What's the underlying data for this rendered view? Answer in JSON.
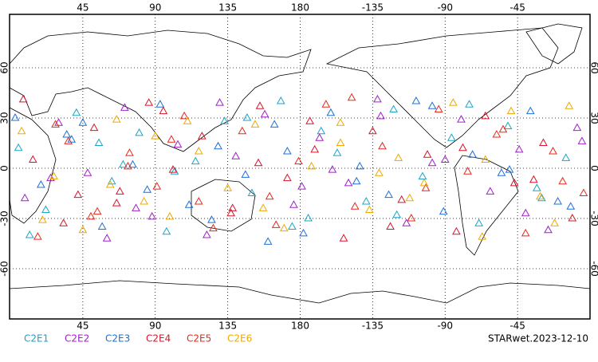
{
  "chart_data": {
    "type": "scatter",
    "footer": "STARwet.2023-12-10",
    "xlim": [
      0,
      360
    ],
    "ylim": [
      -90,
      90
    ],
    "xticks": [
      45,
      90,
      135,
      180,
      {
        "value": 225,
        "label": "-135"
      },
      {
        "value": 270,
        "label": "-90"
      },
      {
        "value": 315,
        "label": "-45"
      }
    ],
    "yticks": [
      60,
      30,
      0,
      -30,
      -60
    ],
    "grid": true,
    "series": [
      {
        "name": "C2E1",
        "color": "#1aa6c8",
        "x": [
          5,
          22,
          41,
          63,
          80,
          97,
          115,
          133,
          150,
          168,
          185,
          203,
          221,
          238,
          256,
          274,
          291,
          309,
          327,
          345,
          12,
          55,
          102,
          147,
          193,
          240,
          285,
          330,
          70,
          175
        ],
        "values": [
          12,
          -25,
          33,
          -8,
          21,
          -38,
          4,
          28,
          -15,
          40,
          -30,
          9,
          -20,
          35,
          -5,
          18,
          -33,
          25,
          -12,
          6,
          -40,
          15,
          -2,
          30,
          22,
          -28,
          38,
          -18,
          2,
          -35
        ]
      },
      {
        "name": "C2E2",
        "color": "#a020c8",
        "x": [
          9,
          30,
          48,
          71,
          88,
          104,
          122,
          140,
          158,
          176,
          192,
          210,
          228,
          246,
          262,
          280,
          298,
          316,
          334,
          352,
          25,
          78,
          130,
          181,
          230,
          270,
          320,
          355,
          60,
          200
        ],
        "values": [
          -18,
          27,
          -3,
          36,
          -29,
          14,
          -40,
          7,
          32,
          -22,
          18,
          -9,
          41,
          -33,
          3,
          29,
          -14,
          11,
          -37,
          24,
          -6,
          -24,
          39,
          -11,
          31,
          5,
          -27,
          16,
          -42,
          -1
        ]
      },
      {
        "name": "C2E3",
        "color": "#1e6fd9",
        "x": [
          3,
          19,
          38,
          57,
          76,
          93,
          111,
          129,
          146,
          164,
          182,
          199,
          217,
          235,
          252,
          269,
          287,
          305,
          323,
          340,
          35,
          85,
          125,
          172,
          215,
          262,
          310,
          348,
          45,
          160
        ],
        "values": [
          30,
          -10,
          17,
          -35,
          2,
          38,
          -22,
          13,
          -4,
          26,
          -39,
          33,
          1,
          -16,
          40,
          -26,
          8,
          -3,
          34,
          -20,
          20,
          -13,
          -31,
          10,
          -8,
          37,
          -1,
          -23,
          27,
          -44
        ]
      },
      {
        "name": "C2E4",
        "color": "#d8142c",
        "x": [
          14,
          33,
          52,
          68,
          86,
          101,
          119,
          137,
          155,
          172,
          189,
          207,
          225,
          243,
          259,
          277,
          295,
          313,
          331,
          349,
          42,
          95,
          138,
          186,
          236,
          281,
          325,
          8,
          66,
          154
        ],
        "values": [
          5,
          -33,
          24,
          -14,
          39,
          -1,
          19,
          -27,
          37,
          -6,
          11,
          -42,
          22,
          -19,
          8,
          -38,
          31,
          -9,
          15,
          -30,
          -16,
          34,
          -24,
          28,
          -35,
          12,
          -7,
          41,
          -21,
          3
        ]
      },
      {
        "name": "C2E5",
        "color": "#e8281a",
        "x": [
          17,
          36,
          54,
          74,
          91,
          108,
          126,
          144,
          161,
          179,
          196,
          214,
          231,
          249,
          266,
          284,
          302,
          320,
          337,
          356,
          28,
          73,
          117,
          165,
          212,
          258,
          306,
          343,
          50,
          100
        ],
        "values": [
          -41,
          16,
          -26,
          9,
          -11,
          31,
          -36,
          22,
          -17,
          4,
          38,
          -23,
          13,
          -30,
          35,
          -2,
          20,
          -39,
          10,
          -15,
          26,
          1,
          -20,
          -34,
          42,
          -12,
          23,
          -8,
          -29,
          17
        ]
      },
      {
        "name": "C2E6",
        "color": "#f0a800",
        "x": [
          7,
          27,
          45,
          66,
          83,
          99,
          117,
          135,
          152,
          170,
          187,
          205,
          223,
          241,
          257,
          275,
          293,
          311,
          329,
          347,
          20,
          62,
          110,
          157,
          205,
          248,
          295,
          338,
          90,
          229
        ],
        "values": [
          22,
          -5,
          -37,
          29,
          -20,
          -29,
          10,
          -12,
          26,
          -36,
          1,
          27,
          -25,
          6,
          -9,
          39,
          -41,
          34,
          -17,
          37,
          -31,
          -10,
          28,
          -24,
          15,
          -18,
          5,
          -33,
          19,
          -3
        ]
      }
    ]
  }
}
